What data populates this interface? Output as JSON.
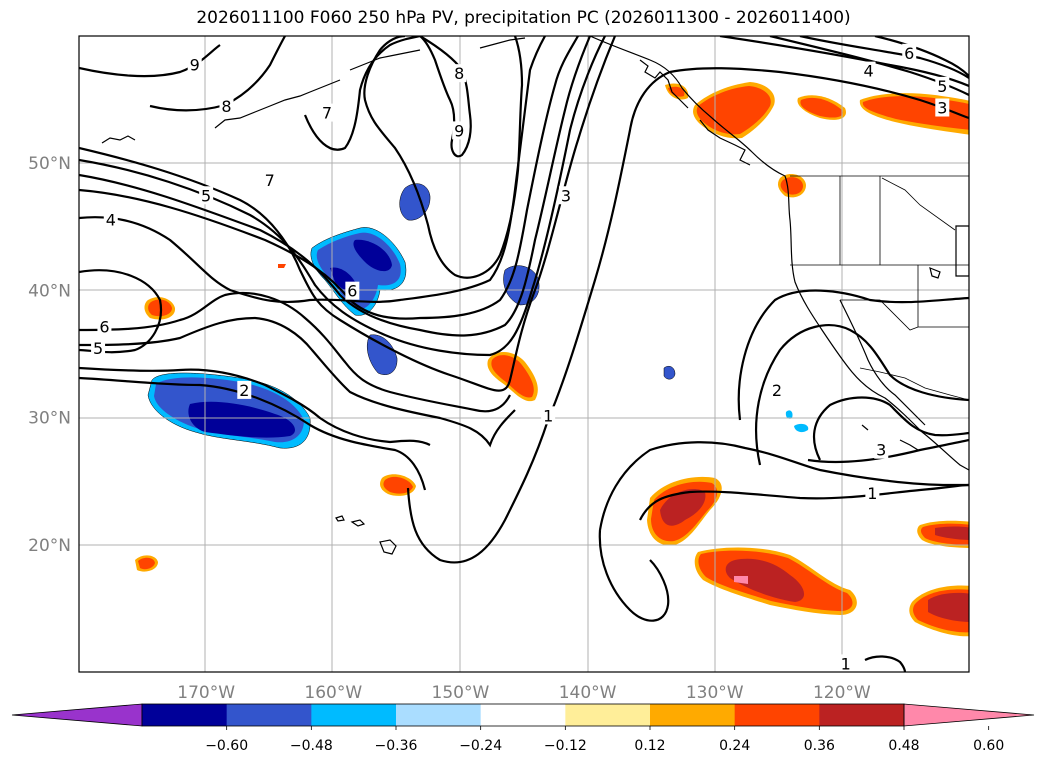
{
  "chart_data": {
    "type": "contour",
    "title": "2026011100 F060 250 hPa PV, precipitation PC (2026011300 - 2026011400)",
    "lon_range": [
      -180,
      -110
    ],
    "lat_range": [
      10,
      60
    ],
    "lat_ticks": [
      {
        "value": 20,
        "label": "20°N"
      },
      {
        "value": 30,
        "label": "30°N"
      },
      {
        "value": 40,
        "label": "40°N"
      },
      {
        "value": 50,
        "label": "50°N"
      }
    ],
    "lon_ticks": [
      {
        "value": -170,
        "label": "170°W"
      },
      {
        "value": -160,
        "label": "160°W"
      },
      {
        "value": -150,
        "label": "150°W"
      },
      {
        "value": -140,
        "label": "140°W"
      },
      {
        "value": -130,
        "label": "130°W"
      },
      {
        "value": -120,
        "label": "120°W"
      }
    ],
    "grid": true,
    "colorbar": {
      "ticks": [
        "−0.60",
        "−0.48",
        "−0.36",
        "−0.24",
        "−0.12",
        "0.12",
        "0.24",
        "0.36",
        "0.48",
        "0.60"
      ],
      "colors": [
        "#9933cc",
        "#000099",
        "#3355cc",
        "#00bbff",
        "#aaddff",
        "#ffffff",
        "#ffee99",
        "#ffaa00",
        "#ff4400",
        "#bb2222",
        "#ff88aa"
      ],
      "extend": "both"
    },
    "pv_contour_labels": [
      {
        "text": "9",
        "lon": -170.9,
        "lat": 57.7
      },
      {
        "text": "8",
        "lon": -168.4,
        "lat": 54.4
      },
      {
        "text": "7",
        "lon": -160.5,
        "lat": 53.9
      },
      {
        "text": "8",
        "lon": -150.1,
        "lat": 57.0
      },
      {
        "text": "9",
        "lon": -150.1,
        "lat": 52.5
      },
      {
        "text": "7",
        "lon": -165.0,
        "lat": 48.6
      },
      {
        "text": "5",
        "lon": -170.0,
        "lat": 47.4
      },
      {
        "text": "4",
        "lon": -177.5,
        "lat": 45.5
      },
      {
        "text": "6",
        "lon": -158.5,
        "lat": 39.9
      },
      {
        "text": "6",
        "lon": -178.0,
        "lat": 37.1
      },
      {
        "text": "5",
        "lon": -178.5,
        "lat": 35.4
      },
      {
        "text": "2",
        "lon": -167.0,
        "lat": 32.1
      },
      {
        "text": "3",
        "lon": -141.7,
        "lat": 47.4
      },
      {
        "text": "1",
        "lon": -143.1,
        "lat": 30.1
      },
      {
        "text": "2",
        "lon": -125.1,
        "lat": 32.1
      },
      {
        "text": "3",
        "lon": -116.9,
        "lat": 27.4
      },
      {
        "text": "1",
        "lon": -117.6,
        "lat": 24.0
      },
      {
        "text": "1",
        "lon": -119.7,
        "lat": 10.6
      },
      {
        "text": "4",
        "lon": -117.9,
        "lat": 57.2
      },
      {
        "text": "6",
        "lon": -114.7,
        "lat": 58.6
      },
      {
        "text": "5",
        "lon": -112.1,
        "lat": 56.0
      },
      {
        "text": "3",
        "lon": -112.1,
        "lat": 54.3
      }
    ]
  }
}
